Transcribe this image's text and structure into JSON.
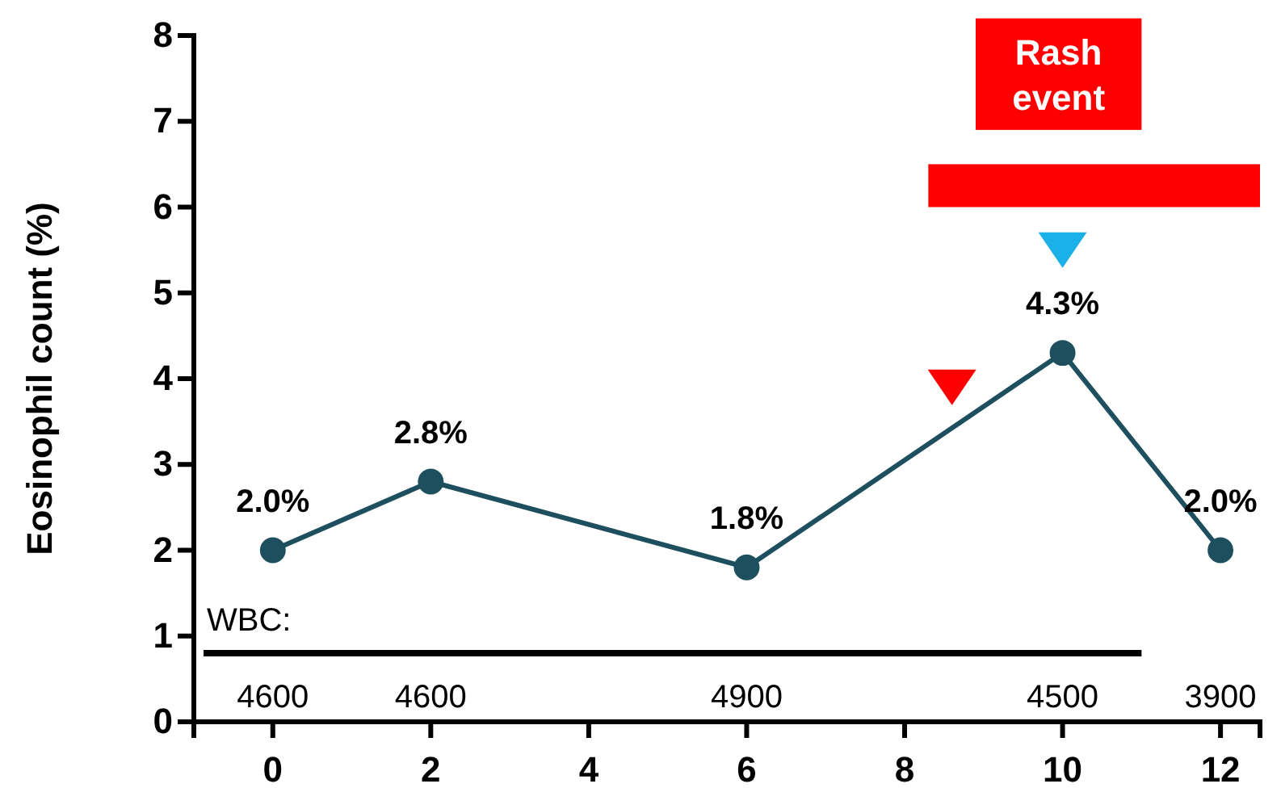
{
  "chart_data": {
    "type": "line",
    "ylabel": "Eosinophil count (%)",
    "x": [
      0,
      2,
      6,
      10,
      12
    ],
    "series": [
      {
        "color": "#1d4f5e",
        "values": [
          2.0,
          2.8,
          1.8,
          4.3,
          2.0
        ],
        "value_labels": [
          "2.0%",
          "2.8%",
          "1.8%",
          "4.3%",
          "2.0%"
        ]
      }
    ],
    "marker": "circle",
    "line_style": "solid",
    "xlim": [
      -1,
      12.5
    ],
    "xticks": [
      0,
      2,
      4,
      6,
      8,
      10,
      12
    ],
    "ylim": [
      0,
      8
    ],
    "yticks": [
      0,
      1,
      2,
      3,
      4,
      5,
      6,
      7,
      8
    ],
    "grid": false,
    "bands": [
      {
        "axis": "x",
        "from": 8.3,
        "to": 12.5,
        "label": "Rash event",
        "color": "#ff0000"
      }
    ],
    "ref_lines": [
      {
        "axis": "y",
        "value": 0.8,
        "label": "WBC:",
        "color": "#000000"
      }
    ],
    "annotations": [
      "4600",
      "4600",
      "4900",
      "4500",
      "3900"
    ]
  }
}
